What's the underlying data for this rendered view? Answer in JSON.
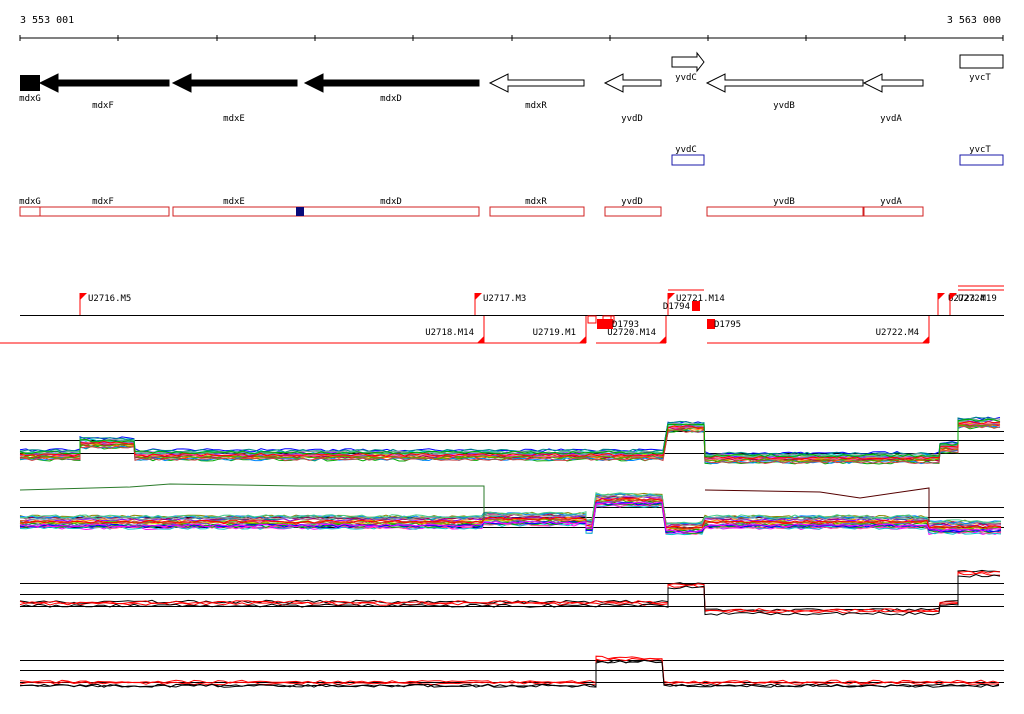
{
  "ruler": {
    "start_label": "3 553 001",
    "end_label": "3 563 000"
  },
  "colors": {
    "gene_fill": "#000000",
    "gene_outline": "#000000",
    "blue_box": "#1a1aa8",
    "blue_mark": "#0a0a7a",
    "cds_outline": "#d02020",
    "signal_red": "#ff0000",
    "line_black": "#000000"
  },
  "genes": [
    {
      "name": "mdxG",
      "filled": true,
      "strand": "-"
    },
    {
      "name": "mdxF",
      "filled": true,
      "strand": "-"
    },
    {
      "name": "mdxE",
      "filled": true,
      "strand": "-"
    },
    {
      "name": "mdxD",
      "filled": true,
      "strand": "-"
    },
    {
      "name": "mdxR",
      "filled": false,
      "strand": "-"
    },
    {
      "name": "yvdD",
      "filled": false,
      "strand": "-"
    },
    {
      "name": "yvdC",
      "filled": false,
      "strand": "+"
    },
    {
      "name": "yvdB",
      "filled": false,
      "strand": "-"
    },
    {
      "name": "yvdA",
      "filled": false,
      "strand": "-"
    },
    {
      "name": "yvcT",
      "filled": false,
      "strand": "+"
    }
  ],
  "blue_genes": [
    {
      "name": "yvdC"
    },
    {
      "name": "yvcT"
    }
  ],
  "cds_track": [
    {
      "name": "mdxG"
    },
    {
      "name": "mdxF"
    },
    {
      "name": "mdxE"
    },
    {
      "name": "mdxD"
    },
    {
      "name": "mdxR"
    },
    {
      "name": "yvdD"
    },
    {
      "name": "yvdB"
    },
    {
      "name": "yvdA"
    }
  ],
  "transcription_units": [
    {
      "name": "U2716.M5",
      "strand": "+"
    },
    {
      "name": "U2717.M3",
      "strand": "+"
    },
    {
      "name": "U2721.M14",
      "strand": "+"
    },
    {
      "name": "U2723.M19",
      "strand": "+"
    },
    {
      "name": "U2724",
      "strand": "+"
    },
    {
      "name": "U2718.M14",
      "strand": "-"
    },
    {
      "name": "U2719.M1",
      "strand": "-"
    },
    {
      "name": "U2720.M14",
      "strand": "-"
    },
    {
      "name": "U2722.M4",
      "strand": "-"
    }
  ],
  "downshifts": [
    {
      "name": "D1793"
    },
    {
      "name": "D1794"
    },
    {
      "name": "D1795"
    }
  ],
  "expression_panels": [
    {
      "id": "panel-1"
    },
    {
      "id": "panel-2"
    },
    {
      "id": "panel-3"
    },
    {
      "id": "panel-4"
    }
  ]
}
